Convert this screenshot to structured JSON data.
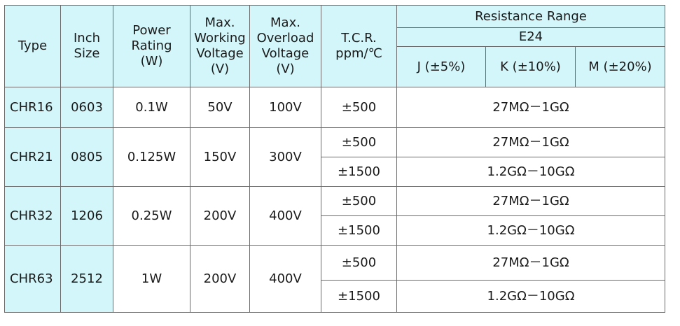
{
  "header": {
    "type": "Type",
    "inch_size": [
      "Inch",
      "Size"
    ],
    "power_rating": [
      "Power",
      "Rating",
      "(W)"
    ],
    "max_working_voltage": [
      "Max.",
      "Working",
      "Voltage",
      "(V)"
    ],
    "max_overload_voltage": [
      "Max.",
      "Overload",
      "Voltage",
      "(V)"
    ],
    "tcr": [
      "T.C.R.",
      "ppm/℃"
    ],
    "resistance_range": "Resistance Range",
    "series": "E24",
    "tolerances": [
      "J (±5%)",
      "K (±10%)",
      "M (±20%)"
    ]
  },
  "rows": [
    {
      "type": "CHR16",
      "size": "0603",
      "power": "0.1W",
      "working_voltage": "50V",
      "overload_voltage": "100V",
      "ranges": [
        {
          "tcr": "±500",
          "resistance": "27MΩ－1GΩ"
        }
      ]
    },
    {
      "type": "CHR21",
      "size": "0805",
      "power": "0.125W",
      "working_voltage": "150V",
      "overload_voltage": "300V",
      "ranges": [
        {
          "tcr": "±500",
          "resistance": "27MΩ－1GΩ"
        },
        {
          "tcr": "±1500",
          "resistance": "1.2GΩ－10GΩ"
        }
      ]
    },
    {
      "type": "CHR32",
      "size": "1206",
      "power": "0.25W",
      "working_voltage": "200V",
      "overload_voltage": "400V",
      "ranges": [
        {
          "tcr": "±500",
          "resistance": "27MΩ－1GΩ"
        },
        {
          "tcr": "±1500",
          "resistance": "1.2GΩ－10GΩ"
        }
      ]
    },
    {
      "type": "CHR63",
      "size": "2512",
      "power": "1W",
      "working_voltage": "200V",
      "overload_voltage": "400V",
      "ranges": [
        {
          "tcr": "±500",
          "resistance": "27MΩ－1GΩ"
        },
        {
          "tcr": "±1500",
          "resistance": "1.2GΩ－10GΩ"
        }
      ]
    }
  ]
}
